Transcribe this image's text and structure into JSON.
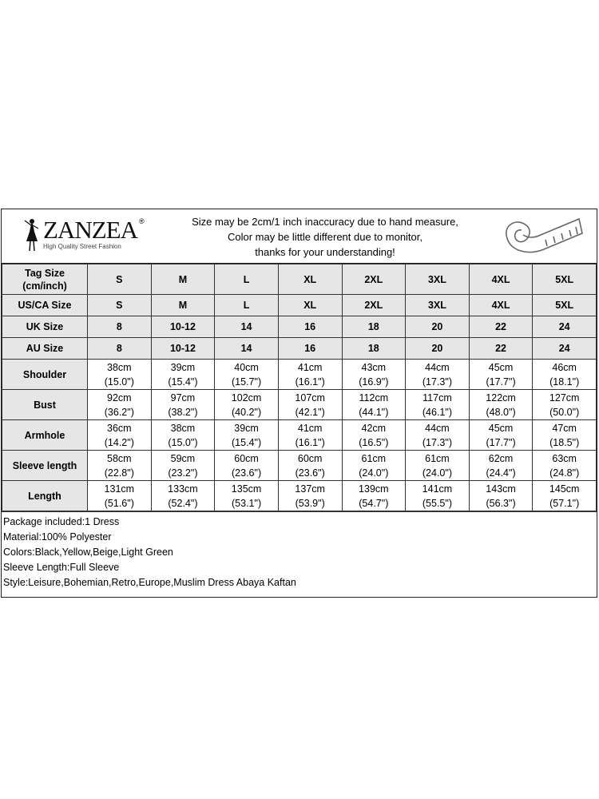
{
  "brand": {
    "name": "ZANZEA",
    "registered": "®",
    "tagline": "High Quality Street Fashion"
  },
  "disclaimer": [
    "Size may be 2cm/1 inch inaccuracy due to hand measure,",
    "Color may be little different due to monitor,",
    "thanks for your understanding!"
  ],
  "icons": [
    "dress-figure-icon",
    "measuring-tape-icon"
  ],
  "size_rows": [
    {
      "label": "Tag Size (cm/inch)",
      "values": [
        "S",
        "M",
        "L",
        "XL",
        "2XL",
        "3XL",
        "4XL",
        "5XL"
      ]
    },
    {
      "label": "US/CA Size",
      "values": [
        "S",
        "M",
        "L",
        "XL",
        "2XL",
        "3XL",
        "4XL",
        "5XL"
      ]
    },
    {
      "label": "UK Size",
      "values": [
        "8",
        "10-12",
        "14",
        "16",
        "18",
        "20",
        "22",
        "24"
      ]
    },
    {
      "label": "AU Size",
      "values": [
        "8",
        "10-12",
        "14",
        "16",
        "18",
        "20",
        "22",
        "24"
      ]
    }
  ],
  "measure_rows": [
    {
      "label": "Shoulder",
      "cm": [
        "38cm",
        "39cm",
        "40cm",
        "41cm",
        "43cm",
        "44cm",
        "45cm",
        "46cm"
      ],
      "inch": [
        "(15.0\")",
        "(15.4\")",
        "(15.7\")",
        "(16.1\")",
        "(16.9\")",
        "(17.3\")",
        "(17.7\")",
        "(18.1\")"
      ]
    },
    {
      "label": "Bust",
      "cm": [
        "92cm",
        "97cm",
        "102cm",
        "107cm",
        "112cm",
        "117cm",
        "122cm",
        "127cm"
      ],
      "inch": [
        "(36.2\")",
        "(38.2\")",
        "(40.2\")",
        "(42.1\")",
        "(44.1\")",
        "(46.1\")",
        "(48.0\")",
        "(50.0\")"
      ]
    },
    {
      "label": "Armhole",
      "cm": [
        "36cm",
        "38cm",
        "39cm",
        "41cm",
        "42cm",
        "44cm",
        "45cm",
        "47cm"
      ],
      "inch": [
        "(14.2\")",
        "(15.0\")",
        "(15.4\")",
        "(16.1\")",
        "(16.5\")",
        "(17.3\")",
        "(17.7\")",
        "(18.5\")"
      ]
    },
    {
      "label": "Sleeve length",
      "cm": [
        "58cm",
        "59cm",
        "60cm",
        "60cm",
        "61cm",
        "61cm",
        "62cm",
        "63cm"
      ],
      "inch": [
        "(22.8\")",
        "(23.2\")",
        "(23.6\")",
        "(23.6\")",
        "(24.0\")",
        "(24.0\")",
        "(24.4\")",
        "(24.8\")"
      ]
    },
    {
      "label": "Length",
      "cm": [
        "131cm",
        "133cm",
        "135cm",
        "137cm",
        "139cm",
        "141cm",
        "143cm",
        "145cm"
      ],
      "inch": [
        "(51.6\")",
        "(52.4\")",
        "(53.1\")",
        "(53.9\")",
        "(54.7\")",
        "(55.5\")",
        "(56.3\")",
        "(57.1\")"
      ]
    }
  ],
  "notes": [
    "Package included:1 Dress",
    "Material:100% Polyester",
    "Colors:Black,Yellow,Beige,Light Green",
    "Sleeve Length:Full Sleeve",
    "Style:Leisure,Bohemian,Retro,Europe,Muslim Dress Abaya Kaftan"
  ]
}
